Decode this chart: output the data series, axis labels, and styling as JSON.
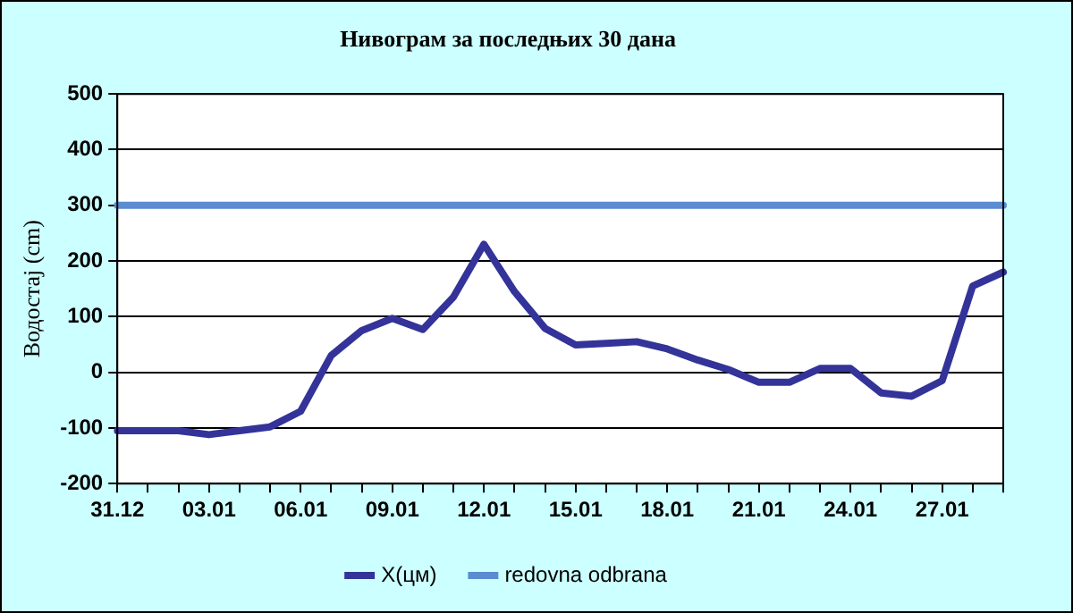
{
  "chart_data": {
    "type": "line",
    "title": "Нивограм за последњих 30 дана",
    "ylabel": "Водостај (cm)",
    "categories": [
      "31.12",
      null,
      null,
      "03.01",
      null,
      null,
      "06.01",
      null,
      null,
      "09.01",
      null,
      null,
      "12.01",
      null,
      null,
      "15.01",
      null,
      null,
      "18.01",
      null,
      null,
      "21.01",
      null,
      null,
      "24.01",
      null,
      null,
      "27.01",
      null,
      null
    ],
    "series": [
      {
        "name": "X(цм)",
        "color": "#333399",
        "values": [
          -105,
          -105,
          -105,
          -112,
          -105,
          -98,
          -70,
          30,
          75,
          97,
          77,
          135,
          230,
          145,
          79,
          49,
          52,
          55,
          42,
          22,
          5,
          -18,
          -18,
          7,
          7,
          -37,
          -43,
          -15,
          155,
          180
        ]
      },
      {
        "name": "redovna odbrana",
        "color": "#5b8bd0",
        "values": [
          300,
          300,
          300,
          300,
          300,
          300,
          300,
          300,
          300,
          300,
          300,
          300,
          300,
          300,
          300,
          300,
          300,
          300,
          300,
          300,
          300,
          300,
          300,
          300,
          300,
          300,
          300,
          300,
          300,
          300
        ]
      }
    ],
    "ylim": [
      -200,
      500
    ],
    "yticks": [
      -200,
      -100,
      0,
      100,
      200,
      300,
      400,
      500
    ],
    "grid": "y",
    "legend": "bottom",
    "marker": "none",
    "line_style": "solid"
  }
}
